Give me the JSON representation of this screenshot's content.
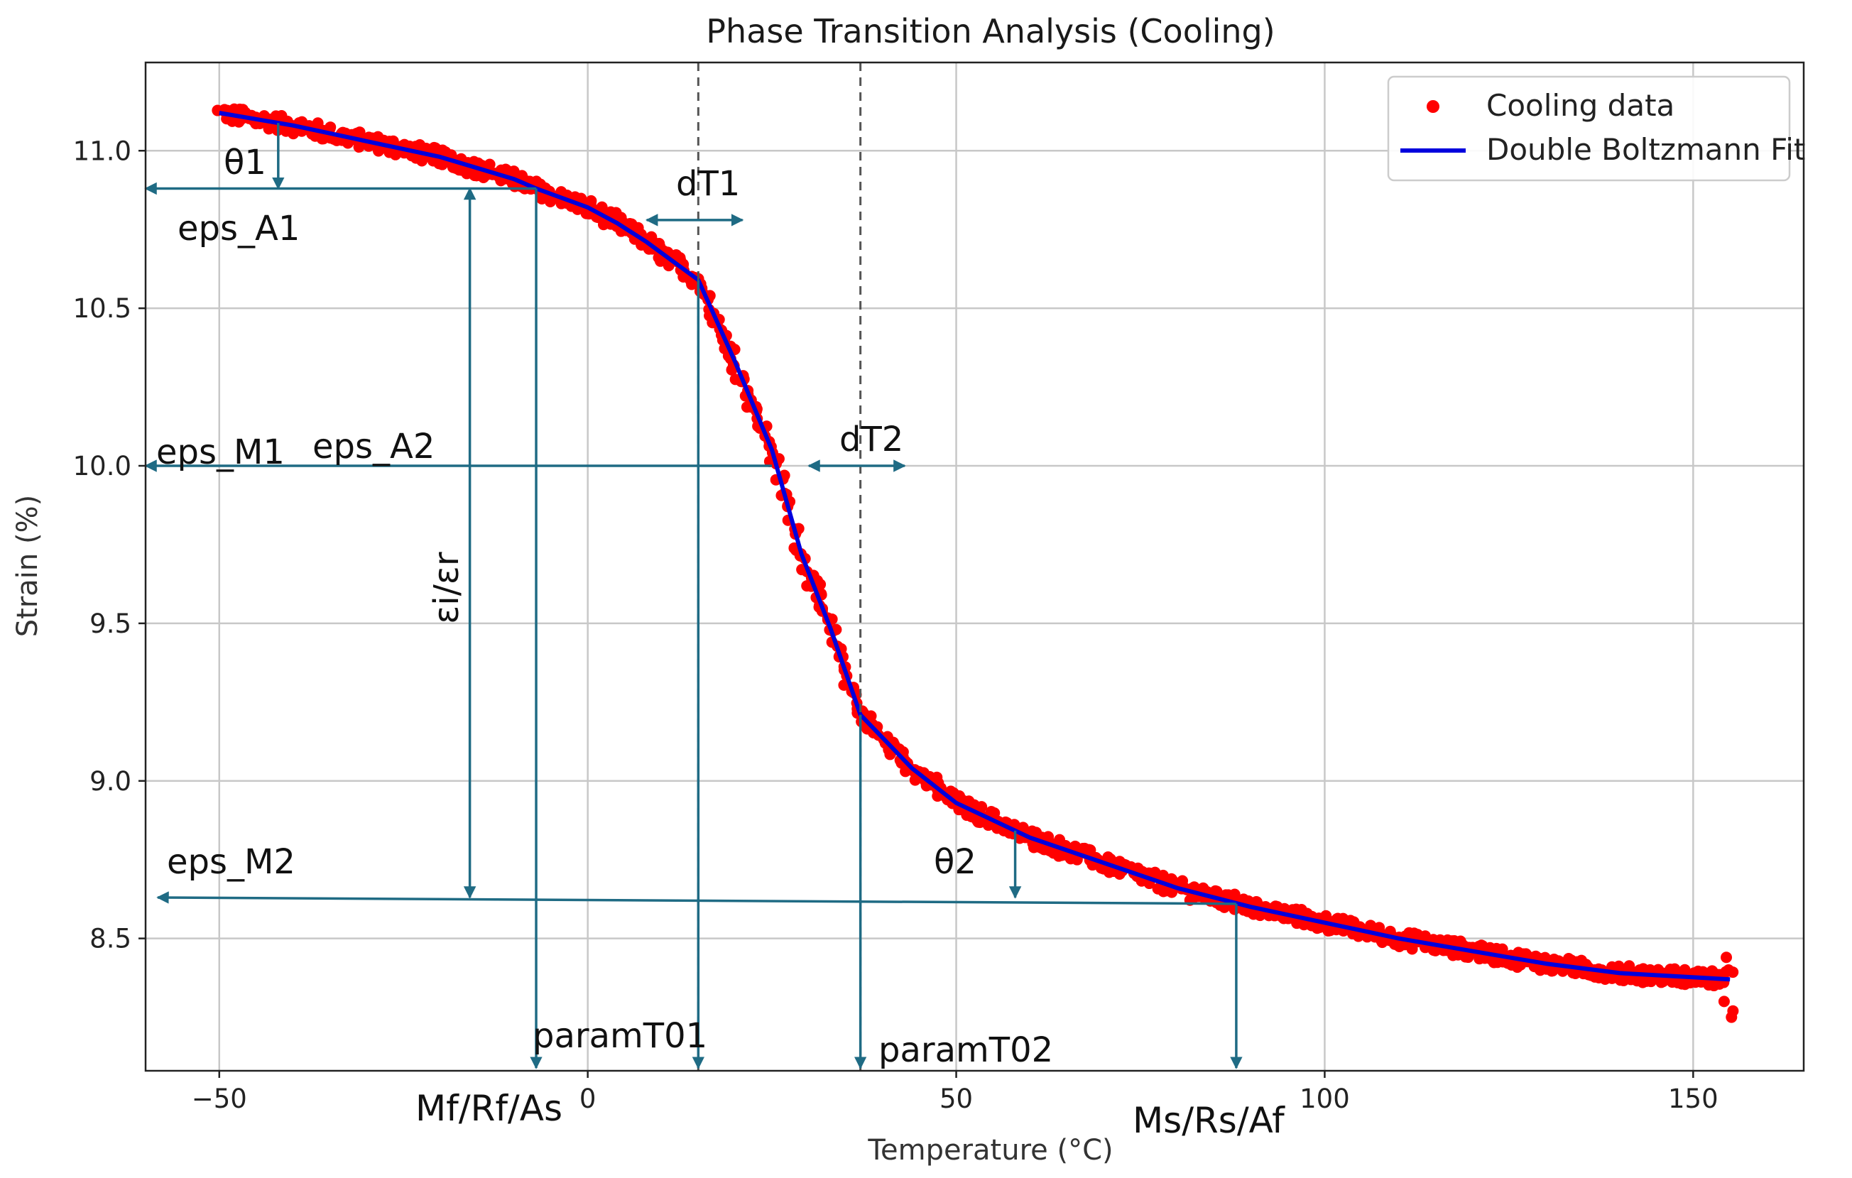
{
  "chart_data": {
    "type": "scatter",
    "title": "Phase Transition Analysis (Cooling)",
    "xlabel": "Temperature (°C)",
    "ylabel": "Strain (%)",
    "xlim": [
      -60,
      165
    ],
    "ylim": [
      8.08,
      11.28
    ],
    "xticks": [
      -50,
      0,
      50,
      100,
      150
    ],
    "xtick_labels": [
      "−50",
      "0",
      "50",
      "100",
      "150"
    ],
    "yticks": [
      8.5,
      9.0,
      9.5,
      10.0,
      10.5,
      11.0
    ],
    "ytick_labels": [
      "8.5",
      "9.0",
      "9.5",
      "10.0",
      "10.5",
      "11.0"
    ],
    "grid": true,
    "legend": {
      "position": "top-right",
      "entries": [
        {
          "label": "Cooling data",
          "type": "scatter",
          "color": "#ff0000"
        },
        {
          "label": "Double Boltzmann Fit",
          "type": "line",
          "color": "#0000dd"
        }
      ]
    },
    "series": [
      {
        "name": "Cooling data",
        "kind": "scatter-band",
        "color": "#ff0000",
        "x_range": [
          -50,
          155
        ],
        "follows": "Double Boltzmann Fit"
      },
      {
        "name": "Double Boltzmann Fit",
        "kind": "line",
        "color": "#0000dd",
        "x": [
          -50,
          -40,
          -30,
          -20,
          -10,
          -7,
          0,
          4,
          8,
          15,
          20,
          25,
          29,
          33,
          37,
          44,
          50,
          60,
          70,
          80,
          90,
          100,
          110,
          120,
          130,
          140,
          155
        ],
        "y": [
          11.12,
          11.08,
          11.03,
          10.98,
          10.91,
          10.88,
          10.82,
          10.77,
          10.71,
          10.59,
          10.33,
          10.05,
          9.72,
          9.48,
          9.21,
          9.04,
          8.93,
          8.82,
          8.74,
          8.66,
          8.6,
          8.55,
          8.5,
          8.46,
          8.42,
          8.39,
          8.37
        ]
      }
    ],
    "reference_lines": [
      {
        "name": "paramT01",
        "x": 15,
        "style": "dashed"
      },
      {
        "name": "paramT02",
        "x": 37,
        "style": "dashed"
      }
    ],
    "annotations": {
      "theta1": "θ1",
      "eps_A1": "eps_A1",
      "dT1": "dT1",
      "eps_M1": "eps_M1",
      "eps_A2": "eps_A2",
      "dT2": "dT2",
      "eps_ratio": "εi/εr",
      "eps_M2": "eps_M2",
      "theta2": "θ2",
      "paramT01": "paramT01",
      "paramT02": "paramT02",
      "mf_label": "Mf/Rf/As",
      "ms_label": "Ms/Rs/Af"
    },
    "annotation_values": {
      "eps_A1_y": 10.88,
      "eps_A2_y": 10.0,
      "eps_M2_y_left": 8.63,
      "eps_M2_y_right": 8.61,
      "theta1_x": -42,
      "theta2_x": 58,
      "T_mf": -7,
      "T_ms": 88,
      "eps_ratio_x": -16,
      "dT1_range": [
        8,
        21
      ],
      "dT2_range": [
        30,
        43
      ]
    }
  }
}
